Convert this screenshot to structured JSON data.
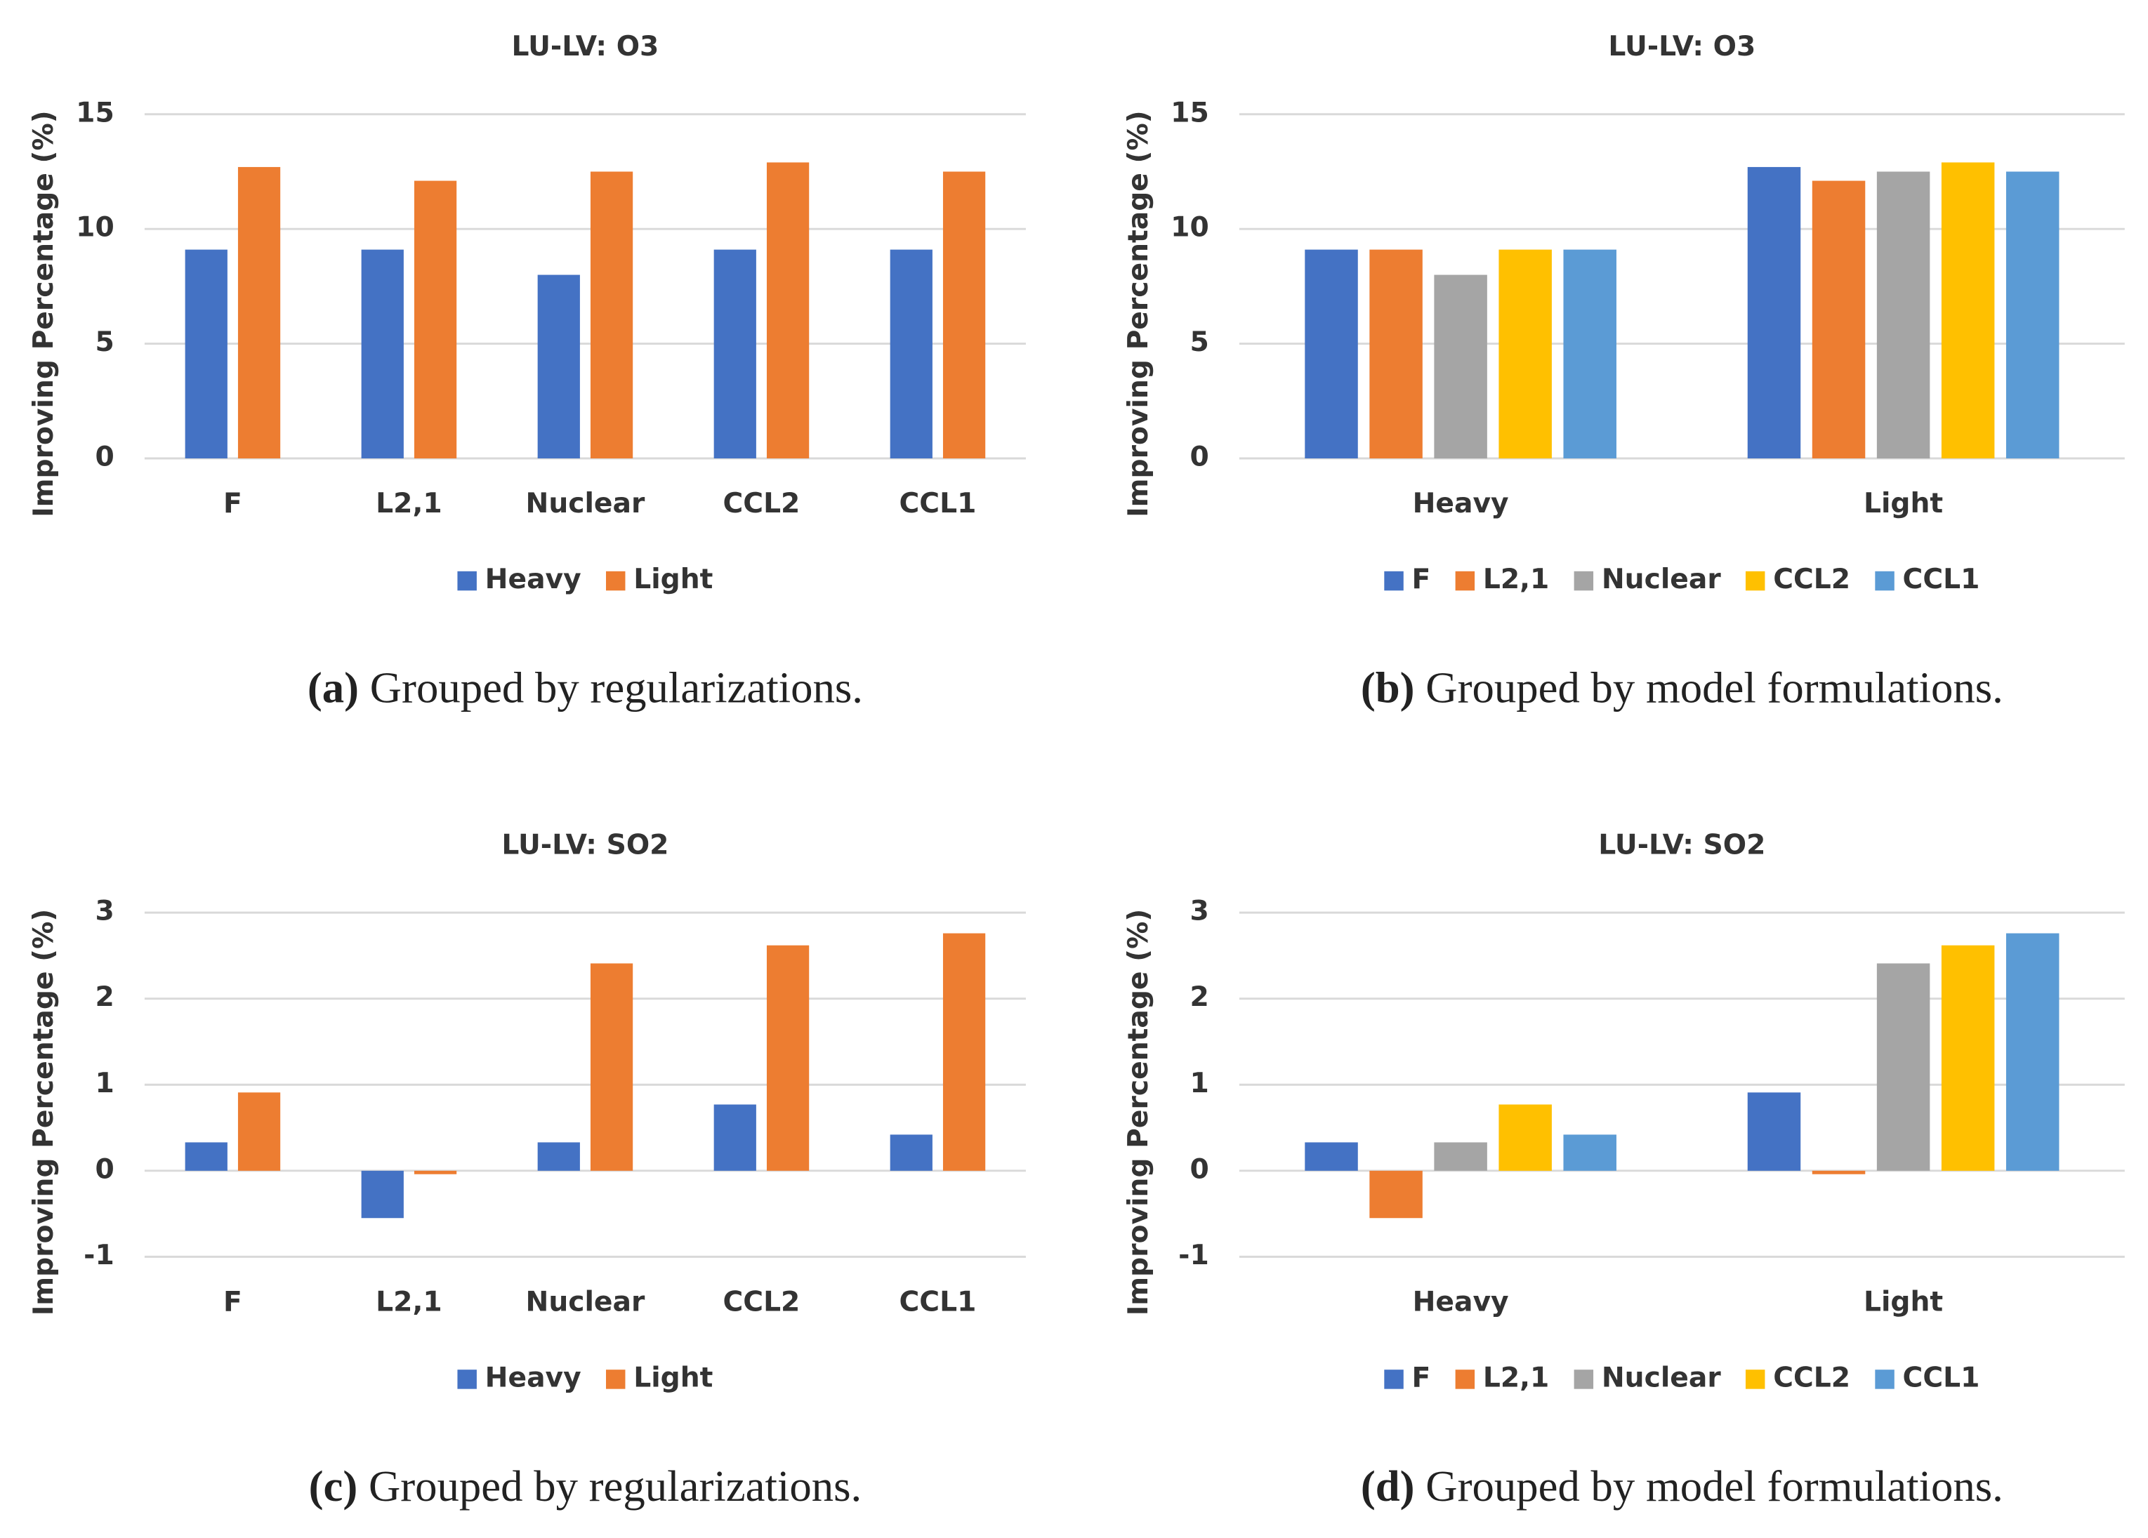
{
  "chart_data": [
    {
      "type": "bar",
      "title": "LU-LV: O3",
      "y_label": "Improving Percentage (%)",
      "caption_label": "(a)",
      "caption": "Grouped by regularizations.",
      "categories": [
        "F",
        "L2,1",
        "Nuclear",
        "CCL2",
        "CCL1"
      ],
      "series": [
        {
          "name": "Heavy",
          "color": "#4472c4",
          "values": [
            9.1,
            9.1,
            8.0,
            9.1,
            9.1
          ]
        },
        {
          "name": "Light",
          "color": "#ed7d31",
          "values": [
            12.7,
            12.1,
            12.5,
            12.9,
            12.5
          ]
        }
      ],
      "ylim": [
        0,
        15
      ],
      "yticks": [
        0,
        5,
        10,
        15
      ],
      "grid": true,
      "legend": "bottom"
    },
    {
      "type": "bar",
      "title": "LU-LV: O3",
      "y_label": "Improving Percentage (%)",
      "caption_label": "(b)",
      "caption": "Grouped by model formulations.",
      "categories": [
        "Heavy",
        "Light"
      ],
      "series": [
        {
          "name": "F",
          "color": "#4472c4",
          "values": [
            9.1,
            12.7
          ]
        },
        {
          "name": "L2,1",
          "color": "#ed7d31",
          "values": [
            9.1,
            12.1
          ]
        },
        {
          "name": "Nuclear",
          "color": "#a5a5a5",
          "values": [
            8.0,
            12.5
          ]
        },
        {
          "name": "CCL2",
          "color": "#ffc000",
          "values": [
            9.1,
            12.9
          ]
        },
        {
          "name": "CCL1",
          "color": "#5b9bd5",
          "values": [
            9.1,
            12.5
          ]
        }
      ],
      "ylim": [
        0,
        15
      ],
      "yticks": [
        0,
        5,
        10,
        15
      ],
      "grid": true,
      "legend": "bottom"
    },
    {
      "type": "bar",
      "title": "LU-LV: SO2",
      "y_label": "Improving Percentage (%)",
      "caption_label": "(c)",
      "caption": "Grouped by regularizations.",
      "categories": [
        "F",
        "L2,1",
        "Nuclear",
        "CCL2",
        "CCL1"
      ],
      "series": [
        {
          "name": "Heavy",
          "color": "#4472c4",
          "values": [
            0.33,
            -0.55,
            0.33,
            0.77,
            0.42
          ]
        },
        {
          "name": "Light",
          "color": "#ed7d31",
          "values": [
            0.91,
            -0.04,
            2.41,
            2.62,
            2.76
          ]
        }
      ],
      "ylim": [
        -1,
        3
      ],
      "yticks": [
        -1,
        0,
        1,
        2,
        3
      ],
      "grid": true,
      "legend": "bottom"
    },
    {
      "type": "bar",
      "title": "LU-LV: SO2",
      "y_label": "Improving Percentage (%)",
      "caption_label": "(d)",
      "caption": "Grouped by model formulations.",
      "categories": [
        "Heavy",
        "Light"
      ],
      "series": [
        {
          "name": "F",
          "color": "#4472c4",
          "values": [
            0.33,
            0.91
          ]
        },
        {
          "name": "L2,1",
          "color": "#ed7d31",
          "values": [
            -0.55,
            -0.04
          ]
        },
        {
          "name": "Nuclear",
          "color": "#a5a5a5",
          "values": [
            0.33,
            2.41
          ]
        },
        {
          "name": "CCL2",
          "color": "#ffc000",
          "values": [
            0.77,
            2.62
          ]
        },
        {
          "name": "CCL1",
          "color": "#5b9bd5",
          "values": [
            0.42,
            2.76
          ]
        }
      ],
      "ylim": [
        -1,
        3
      ],
      "yticks": [
        -1,
        0,
        1,
        2,
        3
      ],
      "grid": true,
      "legend": "bottom"
    }
  ]
}
